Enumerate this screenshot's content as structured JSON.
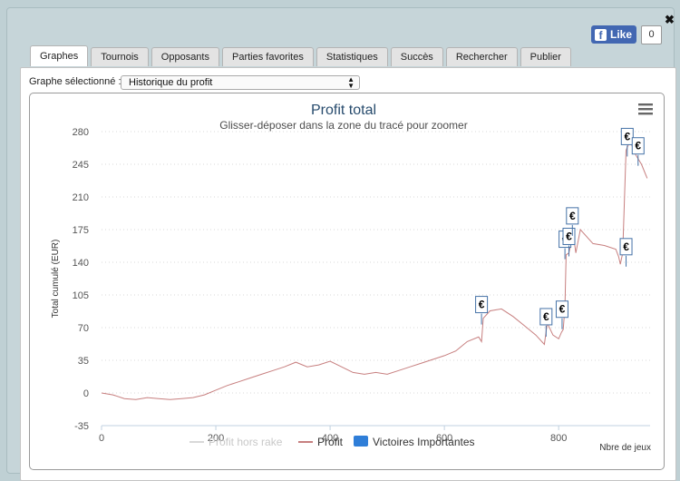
{
  "window": {
    "close_label": "✖"
  },
  "facebook": {
    "like_label": "Like",
    "count": "0"
  },
  "tabs": [
    "Graphes",
    "Tournois",
    "Opposants",
    "Parties favorites",
    "Statistiques",
    "Succès",
    "Rechercher",
    "Publier"
  ],
  "graph_selector": {
    "label": "Graphe sélectionné :",
    "selected": "Historique du profit"
  },
  "colors": {
    "profit": "#c77f7f",
    "profit_hors_rake": "#d8d8d8",
    "victoires": "#2f7ed8",
    "flag_border": "#4572a7"
  },
  "chart_data": {
    "type": "line",
    "title": "Profit total",
    "subtitle": "Glisser-déposer dans la zone du tracé pour zoomer",
    "xlabel": "Nbre de jeux",
    "ylabel": "Total cumulé (EUR)",
    "xlim": [
      0,
      960
    ],
    "ylim": [
      -35,
      280
    ],
    "x_ticks": [
      0,
      200,
      400,
      600,
      800
    ],
    "y_ticks": [
      -35,
      0,
      35,
      70,
      105,
      140,
      175,
      210,
      245,
      280
    ],
    "legend": [
      "Profit hors rake",
      "Profit",
      "Victoires Importantes"
    ],
    "series": [
      {
        "name": "Profit",
        "points": [
          [
            0,
            0
          ],
          [
            20,
            -2
          ],
          [
            40,
            -6
          ],
          [
            60,
            -7
          ],
          [
            80,
            -5
          ],
          [
            100,
            -6
          ],
          [
            120,
            -7
          ],
          [
            140,
            -6
          ],
          [
            160,
            -5
          ],
          [
            180,
            -2
          ],
          [
            200,
            3
          ],
          [
            220,
            8
          ],
          [
            240,
            12
          ],
          [
            260,
            16
          ],
          [
            280,
            20
          ],
          [
            300,
            24
          ],
          [
            320,
            28
          ],
          [
            340,
            33
          ],
          [
            360,
            28
          ],
          [
            380,
            30
          ],
          [
            400,
            34
          ],
          [
            420,
            28
          ],
          [
            440,
            22
          ],
          [
            460,
            20
          ],
          [
            480,
            22
          ],
          [
            500,
            20
          ],
          [
            520,
            24
          ],
          [
            540,
            28
          ],
          [
            560,
            32
          ],
          [
            580,
            36
          ],
          [
            600,
            40
          ],
          [
            620,
            45
          ],
          [
            640,
            55
          ],
          [
            660,
            60
          ],
          [
            665,
            55
          ],
          [
            668,
            80
          ],
          [
            680,
            88
          ],
          [
            700,
            90
          ],
          [
            720,
            82
          ],
          [
            740,
            72
          ],
          [
            760,
            62
          ],
          [
            775,
            52
          ],
          [
            780,
            75
          ],
          [
            790,
            62
          ],
          [
            800,
            58
          ],
          [
            805,
            65
          ],
          [
            808,
            68
          ],
          [
            811,
            92
          ],
          [
            813,
            148
          ],
          [
            818,
            150
          ],
          [
            822,
            162
          ],
          [
            826,
            168
          ],
          [
            830,
            150
          ],
          [
            838,
            175
          ],
          [
            860,
            160
          ],
          [
            880,
            158
          ],
          [
            900,
            154
          ],
          [
            905,
            146
          ],
          [
            908,
            138
          ],
          [
            912,
            150
          ],
          [
            918,
            260
          ],
          [
            925,
            270
          ],
          [
            935,
            255
          ],
          [
            945,
            245
          ],
          [
            955,
            230
          ]
        ]
      },
      {
        "name": "Victoires Importantes",
        "flags": [
          [
            665,
            85
          ],
          [
            778,
            72
          ],
          [
            806,
            80
          ],
          [
            811,
            155
          ],
          [
            818,
            158
          ],
          [
            824,
            180
          ],
          [
            918,
            147
          ],
          [
            920,
            265
          ],
          [
            939,
            255
          ]
        ],
        "flag_label": "€"
      }
    ]
  }
}
